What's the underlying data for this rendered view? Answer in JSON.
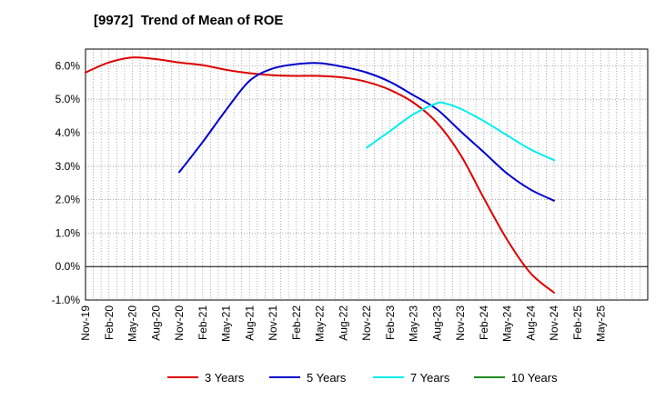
{
  "chart_data": {
    "type": "line",
    "title": "[9972]  Trend of Mean of ROE",
    "xlabel": "",
    "ylabel": "",
    "ylim": [
      -1.0,
      6.5
    ],
    "yticks": [
      -1.0,
      0.0,
      1.0,
      2.0,
      3.0,
      4.0,
      5.0,
      6.0
    ],
    "ytick_labels": [
      "-1.0%",
      "0.0%",
      "1.0%",
      "2.0%",
      "3.0%",
      "4.0%",
      "5.0%",
      "6.0%"
    ],
    "categories": [
      "Nov-19",
      "Dec-19",
      "Jan-20",
      "Feb-20",
      "Mar-20",
      "Apr-20",
      "May-20",
      "Jun-20",
      "Jul-20",
      "Aug-20",
      "Sep-20",
      "Oct-20",
      "Nov-20",
      "Dec-20",
      "Jan-21",
      "Feb-21",
      "Mar-21",
      "Apr-21",
      "May-21",
      "Jun-21",
      "Jul-21",
      "Aug-21",
      "Sep-21",
      "Oct-21",
      "Nov-21",
      "Dec-21",
      "Jan-22",
      "Feb-22",
      "Mar-22",
      "Apr-22",
      "May-22",
      "Jun-22",
      "Jul-22",
      "Aug-22",
      "Sep-22",
      "Oct-22",
      "Nov-22",
      "Dec-22",
      "Jan-23",
      "Feb-23",
      "Mar-23",
      "Apr-23",
      "May-23",
      "Jun-23",
      "Jul-23",
      "Aug-23",
      "Sep-23",
      "Oct-23",
      "Nov-23",
      "Dec-23",
      "Jan-24",
      "Feb-24",
      "Mar-24",
      "Apr-24",
      "May-24",
      "Jun-24",
      "Jul-24",
      "Aug-24",
      "Sep-24",
      "Oct-24",
      "Nov-24",
      "Dec-24",
      "Jan-25",
      "Feb-25",
      "Mar-25",
      "Apr-25",
      "May-25",
      "Jun-25",
      "Jul-25",
      "Aug-25",
      "Sep-25",
      "Oct-25",
      "Nov-25"
    ],
    "xtick_labels": [
      "Nov-19",
      "Feb-20",
      "May-20",
      "Aug-20",
      "Nov-20",
      "Feb-21",
      "May-21",
      "Aug-21",
      "Nov-21",
      "Feb-22",
      "May-22",
      "Aug-22",
      "Nov-22",
      "Feb-23",
      "May-23",
      "Aug-23",
      "Nov-23",
      "Feb-24",
      "May-24",
      "Aug-24",
      "Nov-24",
      "Feb-25",
      "May-25"
    ],
    "grid": true,
    "legend_position": "bottom",
    "series": [
      {
        "name": "3 Years",
        "color": "#dd0000",
        "points": [
          [
            "Nov-19",
            5.8
          ],
          [
            "Feb-20",
            6.1
          ],
          [
            "May-20",
            6.25
          ],
          [
            "Aug-20",
            6.2
          ],
          [
            "Nov-20",
            6.1
          ],
          [
            "Feb-21",
            6.02
          ],
          [
            "May-21",
            5.88
          ],
          [
            "Aug-21",
            5.78
          ],
          [
            "Nov-21",
            5.72
          ],
          [
            "Feb-22",
            5.7
          ],
          [
            "May-22",
            5.7
          ],
          [
            "Aug-22",
            5.65
          ],
          [
            "Nov-22",
            5.52
          ],
          [
            "Feb-23",
            5.28
          ],
          [
            "May-23",
            4.9
          ],
          [
            "Aug-23",
            4.3
          ],
          [
            "Nov-23",
            3.35
          ],
          [
            "Feb-24",
            2.05
          ],
          [
            "May-24",
            0.8
          ],
          [
            "Aug-24",
            -0.2
          ],
          [
            "Nov-24",
            -0.78
          ]
        ]
      },
      {
        "name": "5 Years",
        "color": "#0000cc",
        "points": [
          [
            "Nov-20",
            2.82
          ],
          [
            "Feb-21",
            3.72
          ],
          [
            "May-21",
            4.68
          ],
          [
            "Aug-21",
            5.55
          ],
          [
            "Nov-21",
            5.92
          ],
          [
            "Feb-22",
            6.05
          ],
          [
            "May-22",
            6.08
          ],
          [
            "Aug-22",
            5.97
          ],
          [
            "Nov-22",
            5.8
          ],
          [
            "Feb-23",
            5.52
          ],
          [
            "May-23",
            5.12
          ],
          [
            "Aug-23",
            4.7
          ],
          [
            "Nov-23",
            4.05
          ],
          [
            "Feb-24",
            3.42
          ],
          [
            "May-24",
            2.78
          ],
          [
            "Aug-24",
            2.3
          ],
          [
            "Nov-24",
            1.97
          ]
        ]
      },
      {
        "name": "7 Years",
        "color": "#00eeee",
        "points": [
          [
            "Nov-22",
            3.55
          ],
          [
            "Feb-23",
            4.05
          ],
          [
            "May-23",
            4.55
          ],
          [
            "Aug-23",
            4.88
          ],
          [
            "Sep-23",
            4.88
          ],
          [
            "Nov-23",
            4.72
          ],
          [
            "Feb-24",
            4.35
          ],
          [
            "May-24",
            3.92
          ],
          [
            "Aug-24",
            3.5
          ],
          [
            "Nov-24",
            3.18
          ]
        ]
      },
      {
        "name": "10 Years",
        "color": "#228822",
        "points": []
      }
    ]
  }
}
